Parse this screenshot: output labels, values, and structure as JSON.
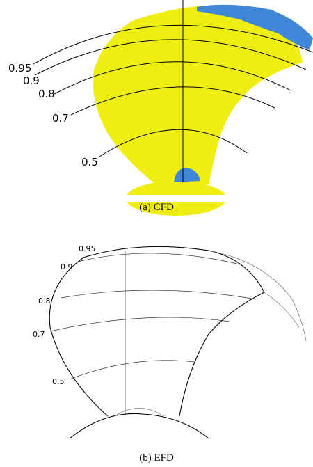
{
  "panel_a": {
    "labels": [
      "0.95",
      "0.9",
      "0.8",
      "0.7",
      "0.5"
    ],
    "caption": "(a) CFD"
  },
  "panel_b": {
    "labels": [
      "0.95",
      "0.9",
      "0.8",
      "0.7",
      "0.5"
    ],
    "caption": "(b) EFD"
  }
}
